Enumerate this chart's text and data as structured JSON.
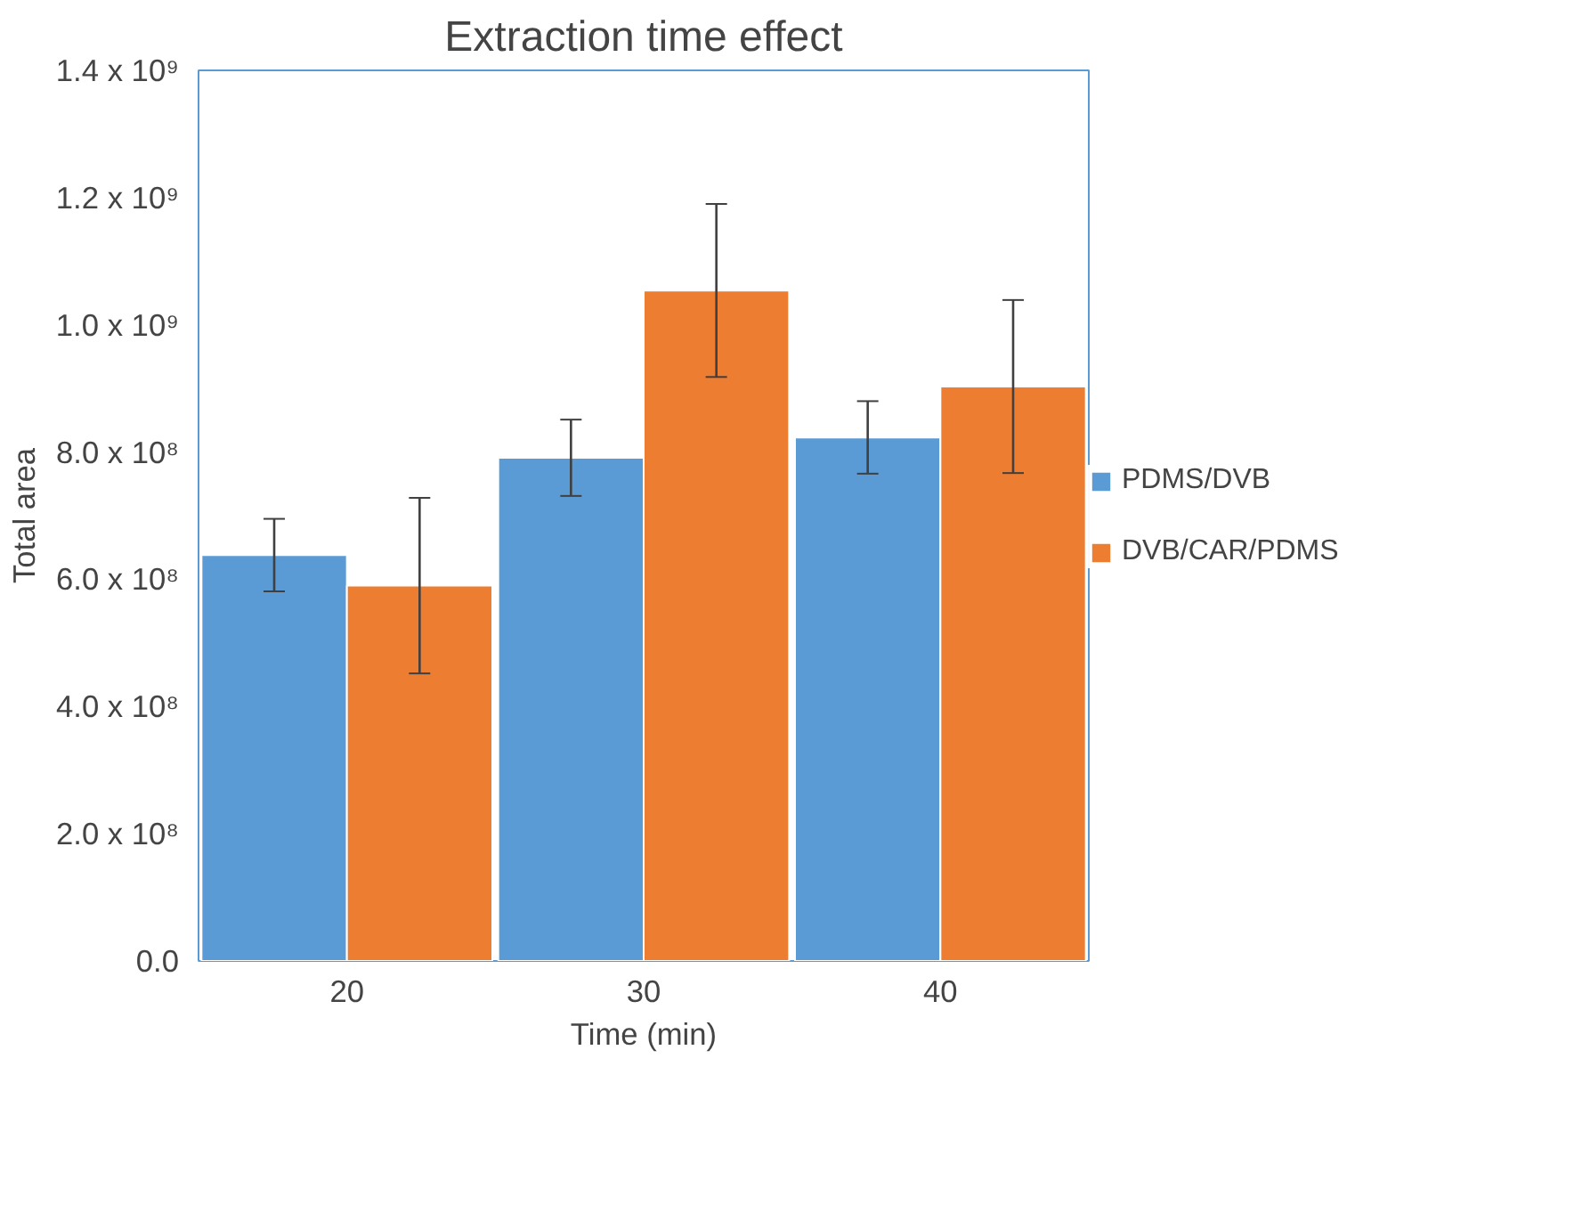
{
  "chart_data": {
    "type": "bar",
    "title": "Extraction time effect",
    "xlabel": "Time (min)",
    "ylabel": "Total area",
    "categories": [
      "20",
      "30",
      "40"
    ],
    "series": [
      {
        "name": "PDMS/DVB",
        "color": "#5b9bd5",
        "values": [
          638000000,
          791000000,
          823000000
        ],
        "errors": [
          57000000,
          60000000,
          57000000
        ]
      },
      {
        "name": "DVB/CAR/PDMS",
        "color": "#ed7d31",
        "values": [
          590000000,
          1054000000,
          903000000
        ],
        "errors": [
          138000000,
          136000000,
          136000000
        ]
      }
    ],
    "ylim": [
      0,
      1400000000
    ],
    "yticks": [
      {
        "value": 0,
        "label": "0.0"
      },
      {
        "value": 200000000,
        "label": "2.0 x 10⁸"
      },
      {
        "value": 400000000,
        "label": "4.0 x 10⁸"
      },
      {
        "value": 600000000,
        "label": "6.0 x 10⁸"
      },
      {
        "value": 800000000,
        "label": "8.0 x 10⁸"
      },
      {
        "value": 1000000000,
        "label": "1.0 x 10⁹"
      },
      {
        "value": 1200000000,
        "label": "1.2 x 10⁹"
      },
      {
        "value": 1400000000,
        "label": "1.4 x 10⁹"
      }
    ],
    "legend": "right"
  }
}
